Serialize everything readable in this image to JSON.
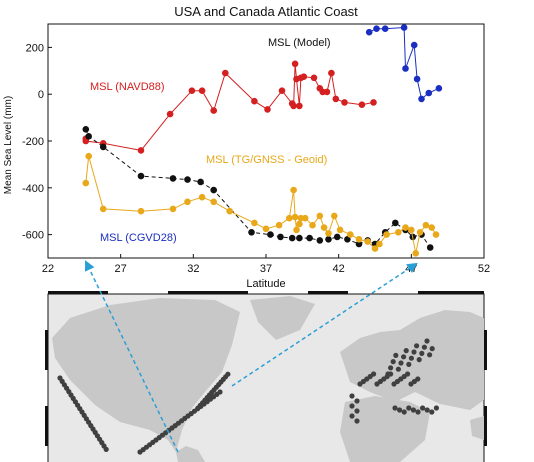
{
  "chart_data": {
    "type": "line",
    "title": "USA and Canada Atlantic Coast",
    "xlabel": "Latitude",
    "ylabel": "Mean Sea Level (mm)",
    "xlim": [
      22,
      52
    ],
    "ylim": [
      -700,
      300
    ],
    "xticks": [
      "22",
      "27",
      "32",
      "37",
      "42",
      "47",
      "52"
    ],
    "yticks": [
      "-600",
      "-400",
      "-200",
      "0",
      "200"
    ],
    "grid": false,
    "series": [
      {
        "name": "MSL (NAVD88)",
        "color": "#d42020",
        "dashed": false,
        "x": [
          24.6,
          24.6,
          25.8,
          28.4,
          30.4,
          31.9,
          32.6,
          33.4,
          34.2,
          36.2,
          37.1,
          38.1,
          38.8,
          38.9,
          39.0,
          39.1,
          39.3,
          39.4,
          39.6,
          40.3,
          40.7,
          40.9,
          41.2,
          41.5,
          41.8,
          42.4,
          43.6,
          44.4
        ],
        "y": [
          -190,
          -200,
          -210,
          -240,
          -85,
          15,
          15,
          -70,
          90,
          -30,
          -65,
          15,
          -40,
          -50,
          130,
          65,
          -50,
          70,
          75,
          70,
          25,
          10,
          10,
          90,
          -20,
          -35,
          -45,
          -35
        ]
      },
      {
        "name": "MSL (Model)",
        "color": "#111111",
        "dashed": true,
        "x": [
          24.6,
          24.8,
          25.8,
          28.4,
          30.6,
          31.6,
          32.5,
          33.4,
          36.0,
          37.3,
          38.0,
          38.8,
          39.3,
          40.0,
          40.7,
          41.3,
          41.9,
          42.6,
          43.4,
          44.0,
          44.5,
          45.2,
          45.9,
          46.6,
          47.1,
          47.7,
          48.3
        ],
        "y": [
          -150,
          -180,
          -225,
          -350,
          -360,
          -365,
          -375,
          -410,
          -590,
          -600,
          -610,
          -615,
          -615,
          -615,
          -625,
          -620,
          -610,
          -620,
          -640,
          -625,
          -640,
          -590,
          -550,
          -580,
          -610,
          -600,
          -655
        ]
      },
      {
        "name": "MSL (TG/GNSS - Geoid)",
        "color": "#e8a81a",
        "dashed": false,
        "x": [
          24.6,
          24.8,
          25.8,
          28.4,
          30.6,
          31.6,
          32.6,
          33.4,
          34.5,
          36.2,
          37.0,
          37.9,
          38.6,
          38.9,
          39.0,
          39.1,
          39.3,
          39.4,
          39.7,
          40.2,
          40.7,
          41.0,
          41.3,
          41.7,
          42.1,
          42.8,
          43.4,
          44.0,
          44.5,
          44.8,
          45.3,
          46.1,
          46.6,
          47.0,
          47.3,
          47.6,
          48.0,
          48.4,
          48.7
        ],
        "y": [
          -380,
          -265,
          -490,
          -500,
          -490,
          -460,
          -440,
          -460,
          -500,
          -550,
          -575,
          -560,
          -530,
          -410,
          -525,
          -580,
          -555,
          -530,
          -530,
          -560,
          -520,
          -570,
          -595,
          -520,
          -580,
          -600,
          -620,
          -630,
          -660,
          -640,
          -600,
          -590,
          -570,
          -580,
          -680,
          -590,
          -560,
          -570,
          -600
        ]
      },
      {
        "name": "MSL (CGVD28)",
        "color": "#1a2fc2",
        "dashed": false,
        "x": [
          44.1,
          44.6,
          45.2,
          46.5,
          46.6,
          47.2,
          47.4,
          47.7,
          48.2,
          48.9
        ],
        "y": [
          265,
          280,
          280,
          285,
          110,
          210,
          65,
          -20,
          5,
          25
        ]
      }
    ],
    "annotations": [
      "MSL (NAVD88)",
      "MSL (CGVD28)",
      "MSL (Model)",
      "MSL (TG/GNSS - Geoid)"
    ],
    "map": {
      "land_color": "#c8c8c8",
      "ocean_color": "#e8e8e8",
      "station_color": "#404040",
      "pointer_color": "#2a9fd6"
    }
  }
}
